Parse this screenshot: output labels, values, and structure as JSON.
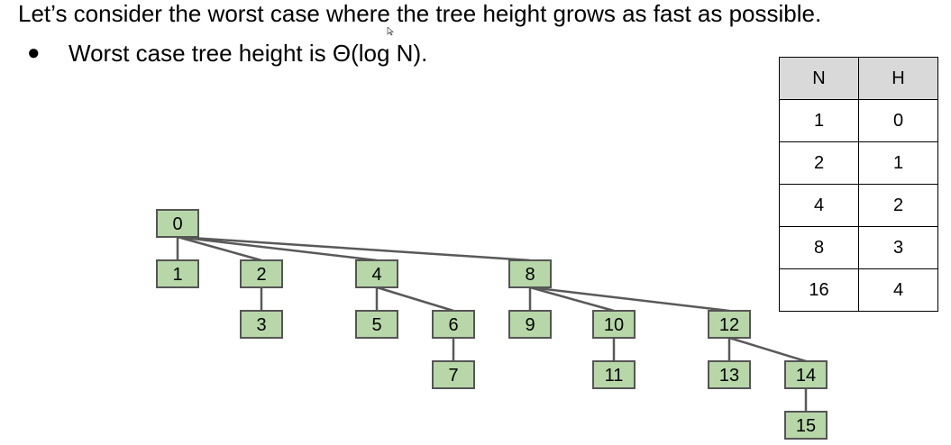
{
  "heading": "Let’s consider the worst case where the tree height grows as fast as possible.",
  "bullet": {
    "marker": "●",
    "text": "Worst case tree height is Θ(log N)."
  },
  "table": {
    "headers": [
      "N",
      "H"
    ],
    "rows": [
      [
        "1",
        "0"
      ],
      [
        "2",
        "1"
      ],
      [
        "4",
        "2"
      ],
      [
        "8",
        "3"
      ],
      [
        "16",
        "4"
      ]
    ]
  },
  "tree": {
    "node_color": "#b7d7a8",
    "edge_color": "#595959",
    "nodes": [
      "0",
      "1",
      "2",
      "3",
      "4",
      "5",
      "6",
      "7",
      "8",
      "9",
      "10",
      "11",
      "12",
      "13",
      "14",
      "15"
    ],
    "edges": [
      [
        "0",
        "1"
      ],
      [
        "0",
        "2"
      ],
      [
        "0",
        "4"
      ],
      [
        "0",
        "8"
      ],
      [
        "2",
        "3"
      ],
      [
        "4",
        "5"
      ],
      [
        "4",
        "6"
      ],
      [
        "6",
        "7"
      ],
      [
        "8",
        "9"
      ],
      [
        "8",
        "10"
      ],
      [
        "8",
        "12"
      ],
      [
        "10",
        "11"
      ],
      [
        "12",
        "13"
      ],
      [
        "12",
        "14"
      ],
      [
        "14",
        "15"
      ]
    ]
  }
}
